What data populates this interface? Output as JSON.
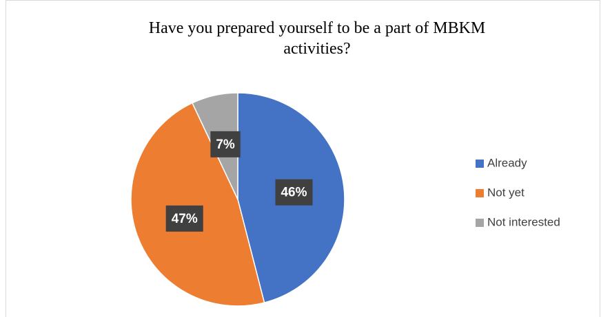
{
  "chart_data": {
    "type": "pie",
    "title": "Have you prepared yourself to be a part of MBKM activities?",
    "categories": [
      "Already",
      "Not yet",
      "Not interested"
    ],
    "values": [
      46,
      47,
      7
    ],
    "value_labels": [
      "46%",
      "47%",
      "7%"
    ],
    "colors": [
      "#4472c4",
      "#ed7d31",
      "#a5a5a5"
    ],
    "legend": "right"
  }
}
